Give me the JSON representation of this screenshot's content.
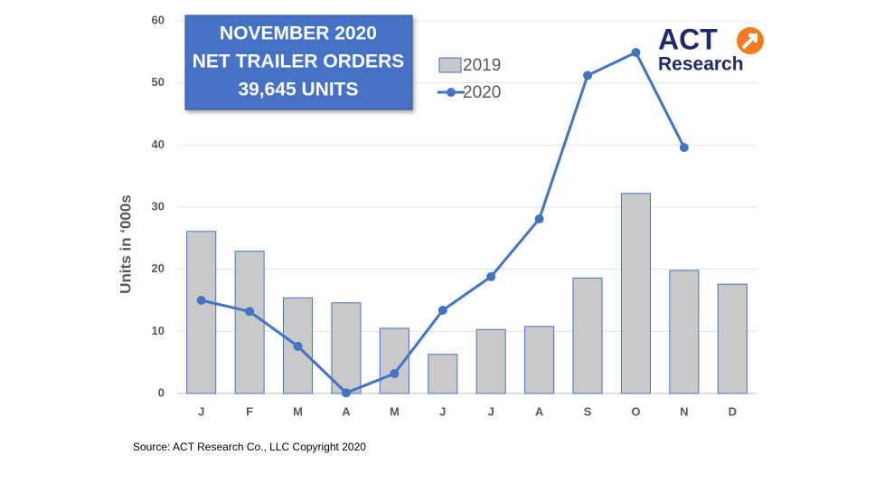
{
  "chart_data": {
    "type": "bar_line",
    "annotation": [
      "NOVEMBER 2020",
      "NET TRAILER ORDERS",
      "39,645 UNITS"
    ],
    "logo": [
      "ACT",
      "Research"
    ],
    "y_label": "Units in ‘000s",
    "source": "Source: ACT Research Co., LLC  Copyright 2020",
    "categories": [
      "J",
      "F",
      "M",
      "A",
      "M",
      "J",
      "J",
      "A",
      "S",
      "O",
      "N",
      "D"
    ],
    "series": [
      {
        "name": "2019",
        "kind": "bar",
        "color": "#c9c9c9",
        "edge": "#4472c4",
        "values": [
          26.1,
          22.9,
          15.4,
          14.6,
          10.5,
          6.3,
          10.3,
          10.8,
          18.6,
          32.2,
          19.8,
          17.6
        ]
      },
      {
        "name": "2020",
        "kind": "line",
        "color": "#4472c4",
        "values": [
          15.0,
          13.2,
          7.6,
          0.1,
          3.2,
          13.4,
          18.8,
          28.1,
          51.2,
          54.9,
          39.6,
          null
        ]
      }
    ],
    "ylim": [
      0,
      60
    ],
    "yticks": [
      0,
      10,
      20,
      30,
      40,
      50,
      60
    ],
    "grid": true
  }
}
